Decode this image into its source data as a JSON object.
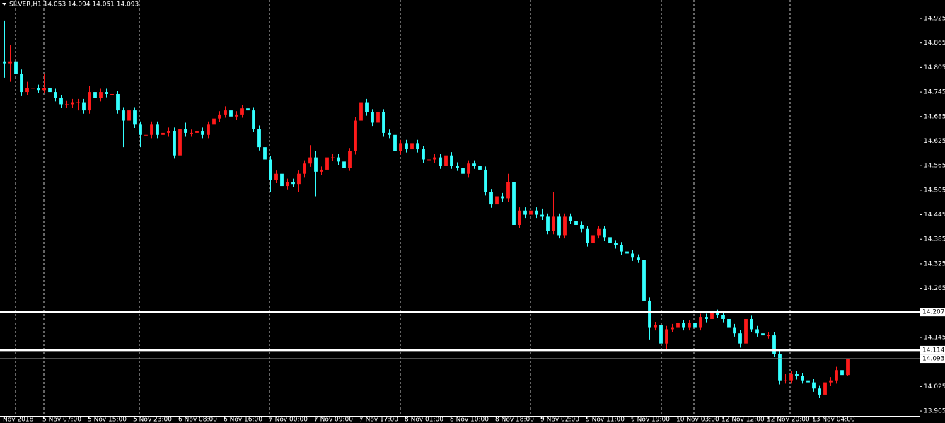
{
  "chart_data": {
    "type": "candlestick",
    "title": "SILVER,H1  14.053 14.094 14.051 14.093",
    "bull_color": "#ff1a1a",
    "bear_color": "#33ffff",
    "xlim": [
      -0.75,
      161.75
    ],
    "ylim": [
      13.953,
      14.97
    ],
    "yticks": [
      14.925,
      14.865,
      14.805,
      14.745,
      14.685,
      14.625,
      14.565,
      14.505,
      14.445,
      14.385,
      14.325,
      14.265,
      14.145,
      14.025,
      13.965
    ],
    "xticks": [
      {
        "value": 0,
        "label": "Nov 2018"
      },
      {
        "value": 7,
        "label": "5 Nov 07:00"
      },
      {
        "value": 15,
        "label": "5 Nov 15:00"
      },
      {
        "value": 23,
        "label": "5 Nov 23:00"
      },
      {
        "value": 31,
        "label": "6 Nov 08:00"
      },
      {
        "value": 39,
        "label": "6 Nov 16:00"
      },
      {
        "value": 47,
        "label": "7 Nov 00:00"
      },
      {
        "value": 55,
        "label": "7 Nov 09:00"
      },
      {
        "value": 63,
        "label": "7 Nov 17:00"
      },
      {
        "value": 71,
        "label": "8 Nov 01:00"
      },
      {
        "value": 79,
        "label": "8 Nov 10:00"
      },
      {
        "value": 87,
        "label": "8 Nov 18:00"
      },
      {
        "value": 95,
        "label": "9 Nov 02:00"
      },
      {
        "value": 103,
        "label": "9 Nov 11:00"
      },
      {
        "value": 111,
        "label": "9 Nov 19:00"
      },
      {
        "value": 119,
        "label": "10 Nov 03:00"
      },
      {
        "value": 127,
        "label": "12 Nov 12:00"
      },
      {
        "value": 135,
        "label": "12 Nov 20:00"
      },
      {
        "value": 143,
        "label": "13 Nov 04:00"
      }
    ],
    "hlines": [
      14.207,
      14.114
    ],
    "current_price": 14.093,
    "ohlc": [
      [
        14.82,
        14.92,
        14.78,
        14.815
      ],
      [
        14.815,
        14.86,
        14.77,
        14.82
      ],
      [
        14.82,
        14.828,
        14.77,
        14.79
      ],
      [
        14.79,
        14.8,
        14.735,
        14.745
      ],
      [
        14.745,
        14.77,
        14.737,
        14.755
      ],
      [
        14.755,
        14.763,
        14.745,
        14.755
      ],
      [
        14.755,
        14.763,
        14.742,
        14.75
      ],
      [
        14.75,
        14.79,
        14.742,
        14.755
      ],
      [
        14.755,
        14.763,
        14.737,
        14.745
      ],
      [
        14.745,
        14.753,
        14.722,
        14.73
      ],
      [
        14.73,
        14.738,
        14.707,
        14.715
      ],
      [
        14.715,
        14.723,
        14.707,
        14.715
      ],
      [
        14.715,
        14.728,
        14.707,
        14.72
      ],
      [
        14.72,
        14.728,
        14.7,
        14.72
      ],
      [
        14.72,
        14.728,
        14.692,
        14.7
      ],
      [
        14.7,
        14.76,
        14.692,
        14.745
      ],
      [
        14.745,
        14.77,
        14.722,
        14.73
      ],
      [
        14.73,
        14.753,
        14.722,
        14.745
      ],
      [
        14.745,
        14.753,
        14.732,
        14.74
      ],
      [
        14.74,
        14.76,
        14.732,
        14.74
      ],
      [
        14.74,
        14.748,
        14.692,
        14.7
      ],
      [
        14.7,
        14.708,
        14.61,
        14.675
      ],
      [
        14.675,
        14.72,
        14.667,
        14.7
      ],
      [
        14.7,
        14.708,
        14.657,
        14.665
      ],
      [
        14.665,
        14.673,
        14.61,
        14.64
      ],
      [
        14.64,
        14.67,
        14.632,
        14.64
      ],
      [
        14.64,
        14.673,
        14.632,
        14.665
      ],
      [
        14.665,
        14.673,
        14.632,
        14.64
      ],
      [
        14.64,
        14.653,
        14.637,
        14.645
      ],
      [
        14.645,
        14.658,
        14.637,
        14.65
      ],
      [
        14.65,
        14.658,
        14.582,
        14.59
      ],
      [
        14.59,
        14.663,
        14.582,
        14.655
      ],
      [
        14.655,
        14.67,
        14.637,
        14.645
      ],
      [
        14.645,
        14.653,
        14.637,
        14.645
      ],
      [
        14.645,
        14.658,
        14.637,
        14.65
      ],
      [
        14.65,
        14.658,
        14.632,
        14.64
      ],
      [
        14.64,
        14.673,
        14.632,
        14.665
      ],
      [
        14.665,
        14.688,
        14.657,
        14.68
      ],
      [
        14.68,
        14.698,
        14.672,
        14.69
      ],
      [
        14.69,
        14.71,
        14.682,
        14.7
      ],
      [
        14.7,
        14.72,
        14.677,
        14.685
      ],
      [
        14.685,
        14.698,
        14.677,
        14.69
      ],
      [
        14.69,
        14.713,
        14.682,
        14.705
      ],
      [
        14.705,
        14.713,
        14.692,
        14.7
      ],
      [
        14.7,
        14.708,
        14.647,
        14.655
      ],
      [
        14.655,
        14.663,
        14.602,
        14.61
      ],
      [
        14.61,
        14.618,
        14.572,
        14.58
      ],
      [
        14.58,
        14.588,
        14.5,
        14.53
      ],
      [
        14.53,
        14.553,
        14.522,
        14.545
      ],
      [
        14.545,
        14.553,
        14.49,
        14.515
      ],
      [
        14.515,
        14.533,
        14.507,
        14.525
      ],
      [
        14.525,
        14.533,
        14.512,
        14.52
      ],
      [
        14.52,
        14.553,
        14.5,
        14.545
      ],
      [
        14.545,
        14.578,
        14.537,
        14.57
      ],
      [
        14.57,
        14.615,
        14.562,
        14.585
      ],
      [
        14.585,
        14.6,
        14.49,
        14.55
      ],
      [
        14.55,
        14.563,
        14.542,
        14.555
      ],
      [
        14.555,
        14.593,
        14.547,
        14.585
      ],
      [
        14.585,
        14.593,
        14.577,
        14.585
      ],
      [
        14.585,
        14.593,
        14.567,
        14.575
      ],
      [
        14.575,
        14.583,
        14.552,
        14.56
      ],
      [
        14.56,
        14.608,
        14.552,
        14.6
      ],
      [
        14.6,
        14.683,
        14.592,
        14.675
      ],
      [
        14.675,
        14.728,
        14.667,
        14.72
      ],
      [
        14.72,
        14.728,
        14.687,
        14.695
      ],
      [
        14.695,
        14.703,
        14.662,
        14.67
      ],
      [
        14.67,
        14.703,
        14.662,
        14.695
      ],
      [
        14.695,
        14.703,
        14.637,
        14.645
      ],
      [
        14.645,
        14.653,
        14.632,
        14.64
      ],
      [
        14.64,
        14.648,
        14.592,
        14.6
      ],
      [
        14.6,
        14.628,
        14.592,
        14.62
      ],
      [
        14.62,
        14.628,
        14.597,
        14.605
      ],
      [
        14.605,
        14.628,
        14.597,
        14.62
      ],
      [
        14.62,
        14.628,
        14.597,
        14.605
      ],
      [
        14.605,
        14.613,
        14.572,
        14.58
      ],
      [
        14.58,
        14.588,
        14.572,
        14.58
      ],
      [
        14.58,
        14.593,
        14.572,
        14.585
      ],
      [
        14.585,
        14.593,
        14.557,
        14.565
      ],
      [
        14.565,
        14.598,
        14.557,
        14.59
      ],
      [
        14.59,
        14.598,
        14.557,
        14.565
      ],
      [
        14.565,
        14.573,
        14.552,
        14.56
      ],
      [
        14.56,
        14.568,
        14.537,
        14.545
      ],
      [
        14.545,
        14.578,
        14.537,
        14.57
      ],
      [
        14.57,
        14.578,
        14.557,
        14.565
      ],
      [
        14.565,
        14.573,
        14.547,
        14.555
      ],
      [
        14.555,
        14.563,
        14.492,
        14.5
      ],
      [
        14.5,
        14.508,
        14.462,
        14.47
      ],
      [
        14.47,
        14.498,
        14.462,
        14.49
      ],
      [
        14.49,
        14.498,
        14.477,
        14.485
      ],
      [
        14.485,
        14.545,
        14.477,
        14.525
      ],
      [
        14.525,
        14.533,
        14.39,
        14.42
      ],
      [
        14.42,
        14.463,
        14.412,
        14.455
      ],
      [
        14.455,
        14.463,
        14.437,
        14.445
      ],
      [
        14.445,
        14.463,
        14.437,
        14.455
      ],
      [
        14.455,
        14.463,
        14.437,
        14.445
      ],
      [
        14.445,
        14.46,
        14.432,
        14.44
      ],
      [
        14.44,
        14.448,
        14.397,
        14.405
      ],
      [
        14.405,
        14.5,
        14.397,
        14.44
      ],
      [
        14.44,
        14.448,
        14.387,
        14.395
      ],
      [
        14.395,
        14.448,
        14.387,
        14.44
      ],
      [
        14.44,
        14.448,
        14.422,
        14.43
      ],
      [
        14.43,
        14.438,
        14.412,
        14.42
      ],
      [
        14.42,
        14.428,
        14.402,
        14.41
      ],
      [
        14.41,
        14.418,
        14.367,
        14.375
      ],
      [
        14.375,
        14.403,
        14.367,
        14.395
      ],
      [
        14.395,
        14.418,
        14.387,
        14.41
      ],
      [
        14.41,
        14.418,
        14.382,
        14.39
      ],
      [
        14.39,
        14.398,
        14.367,
        14.375
      ],
      [
        14.375,
        14.383,
        14.362,
        14.37
      ],
      [
        14.37,
        14.378,
        14.347,
        14.355
      ],
      [
        14.355,
        14.363,
        14.342,
        14.35
      ],
      [
        14.35,
        14.358,
        14.332,
        14.34
      ],
      [
        14.34,
        14.348,
        14.327,
        14.335
      ],
      [
        14.335,
        14.343,
        14.2,
        14.235
      ],
      [
        14.235,
        14.243,
        14.14,
        14.17
      ],
      [
        14.17,
        14.183,
        14.162,
        14.175
      ],
      [
        14.175,
        14.183,
        14.11,
        14.13
      ],
      [
        14.13,
        14.173,
        14.115,
        14.165
      ],
      [
        14.165,
        14.178,
        14.157,
        14.17
      ],
      [
        14.17,
        14.188,
        14.162,
        14.18
      ],
      [
        14.18,
        14.188,
        14.162,
        14.17
      ],
      [
        14.17,
        14.188,
        14.162,
        14.18
      ],
      [
        14.18,
        14.188,
        14.162,
        14.17
      ],
      [
        14.17,
        14.203,
        14.162,
        14.195
      ],
      [
        14.195,
        14.203,
        14.182,
        14.19
      ],
      [
        14.19,
        14.213,
        14.182,
        14.205
      ],
      [
        14.205,
        14.213,
        14.192,
        14.2
      ],
      [
        14.2,
        14.208,
        14.182,
        14.19
      ],
      [
        14.19,
        14.198,
        14.162,
        14.17
      ],
      [
        14.17,
        14.178,
        14.147,
        14.155
      ],
      [
        14.155,
        14.163,
        14.12,
        14.13
      ],
      [
        14.13,
        14.21,
        14.122,
        14.19
      ],
      [
        14.19,
        14.198,
        14.157,
        14.165
      ],
      [
        14.165,
        14.173,
        14.147,
        14.155
      ],
      [
        14.155,
        14.163,
        14.142,
        14.15
      ],
      [
        14.15,
        14.158,
        14.142,
        14.15
      ],
      [
        14.15,
        14.158,
        14.097,
        14.105
      ],
      [
        14.105,
        14.113,
        14.03,
        14.04
      ],
      [
        14.04,
        14.055,
        14.032,
        14.04
      ],
      [
        14.04,
        14.063,
        14.032,
        14.055
      ],
      [
        14.055,
        14.063,
        14.042,
        14.05
      ],
      [
        14.05,
        14.058,
        14.032,
        14.04
      ],
      [
        14.04,
        14.048,
        14.027,
        14.035
      ],
      [
        14.035,
        14.043,
        14.012,
        14.02
      ],
      [
        14.02,
        14.028,
        13.997,
        14.005
      ],
      [
        14.005,
        14.043,
        13.997,
        14.035
      ],
      [
        14.035,
        14.048,
        14.027,
        14.04
      ],
      [
        14.04,
        14.073,
        14.032,
        14.065
      ],
      [
        14.065,
        14.073,
        14.047,
        14.053
      ],
      [
        14.053,
        14.094,
        14.051,
        14.093
      ]
    ]
  }
}
